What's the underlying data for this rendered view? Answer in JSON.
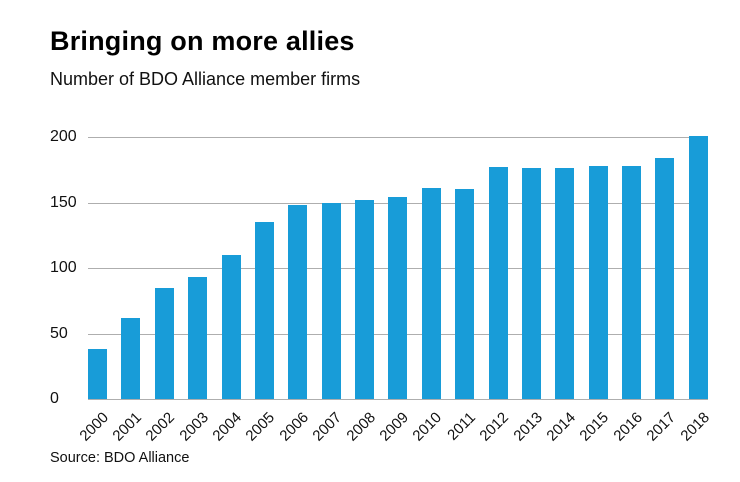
{
  "header": {
    "title": "Bringing on more allies",
    "subtitle": "Number of BDO Alliance member firms"
  },
  "footer": {
    "source": "Source: BDO Alliance"
  },
  "chart_data": {
    "type": "bar",
    "title": "Bringing on more allies",
    "subtitle": "Number of BDO Alliance member firms",
    "source": "Source: BDO Alliance",
    "categories": [
      "2000",
      "2001",
      "2002",
      "2003",
      "2004",
      "2005",
      "2006",
      "2007",
      "2008",
      "2009",
      "2010",
      "2011",
      "2012",
      "2013",
      "2014",
      "2015",
      "2016",
      "2017",
      "2018"
    ],
    "values": [
      38,
      62,
      85,
      93,
      110,
      135,
      148,
      150,
      152,
      154,
      161,
      160,
      177,
      176,
      176,
      178,
      178,
      184,
      201
    ],
    "ylim": [
      0,
      200
    ],
    "yticks": [
      0,
      50,
      100,
      150,
      200
    ],
    "xlabel": "",
    "ylabel": "",
    "grid": true,
    "legend_position": "none",
    "bar_color": "#189cd8",
    "grid_color": "#aeaeae"
  }
}
